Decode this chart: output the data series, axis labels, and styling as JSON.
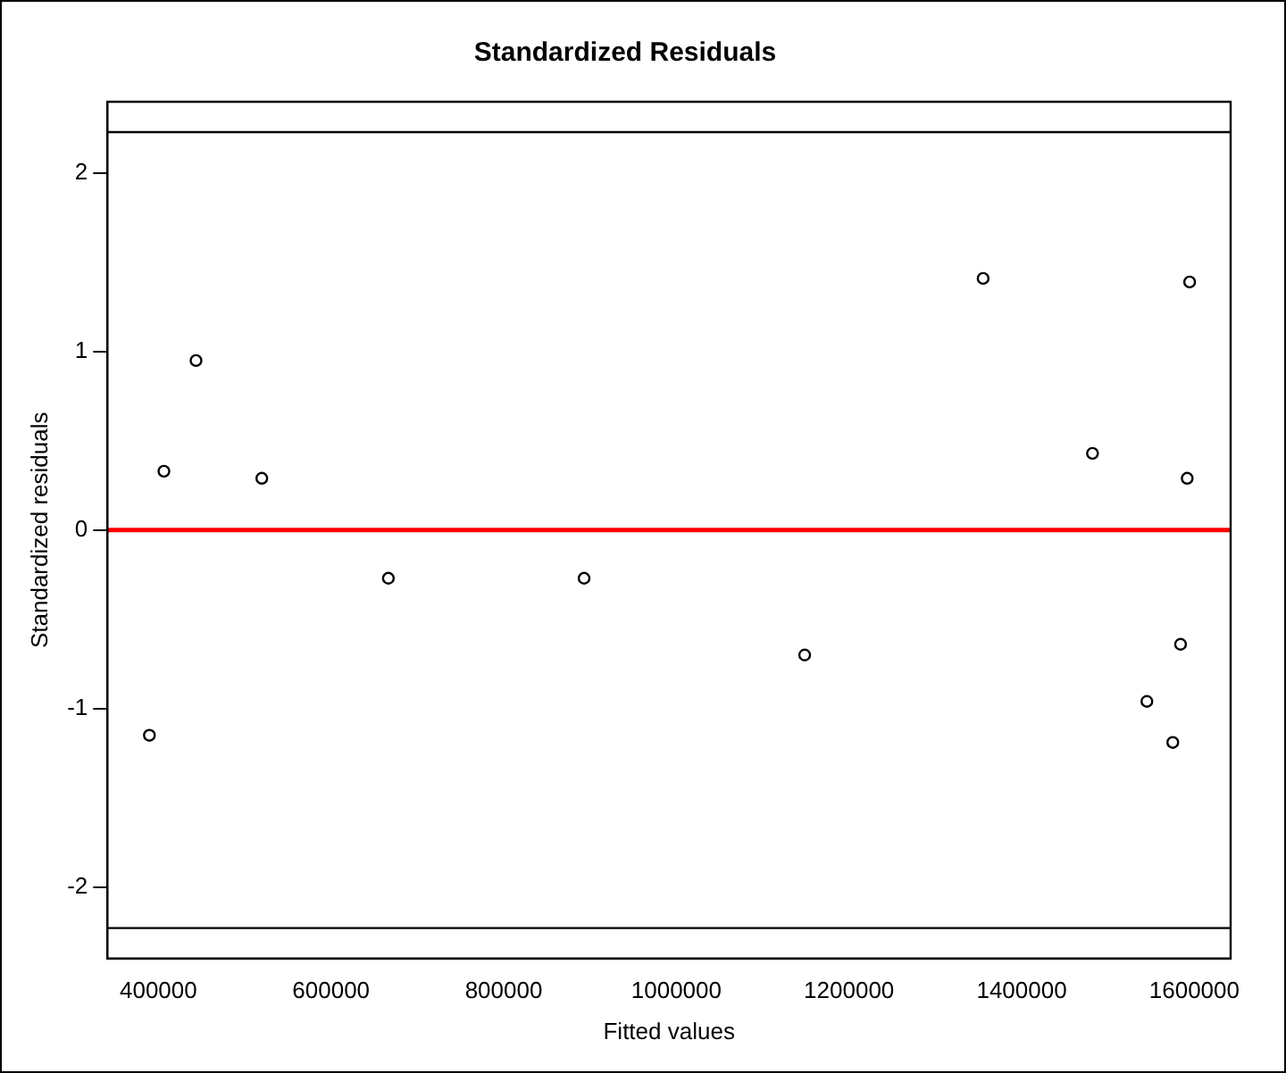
{
  "chart_data": {
    "type": "scatter",
    "title": "Standardized Residuals",
    "xlabel": "Fitted values",
    "ylabel": "Standardized residuals",
    "x": [
      389600,
      406400,
      443600,
      519800,
      666400,
      893100,
      1148600,
      1355300,
      1482000,
      1545000,
      1575000,
      1584000,
      1591700,
      1594500
    ],
    "values": [
      -1.15,
      0.33,
      0.95,
      0.29,
      -0.27,
      -0.27,
      -0.7,
      1.41,
      0.43,
      -0.96,
      -1.19,
      -0.64,
      0.29,
      1.39
    ],
    "color": "#000000",
    "marker": "circle",
    "xlim": [
      341000,
      1642000
    ],
    "xticks": [
      400000,
      600000,
      800000,
      1000000,
      1200000,
      1400000,
      1600000
    ],
    "ylim": [
      -2.4,
      2.4
    ],
    "yticks": [
      -2,
      -1,
      0,
      1,
      2
    ],
    "ref_lines": [
      {
        "axis": "y",
        "value": 0,
        "color": "#ff0000"
      },
      {
        "axis": "y",
        "value": 2.23,
        "color": "#000000"
      },
      {
        "axis": "y",
        "value": -2.23,
        "color": "#000000"
      }
    ],
    "grid": false,
    "legend": false
  }
}
